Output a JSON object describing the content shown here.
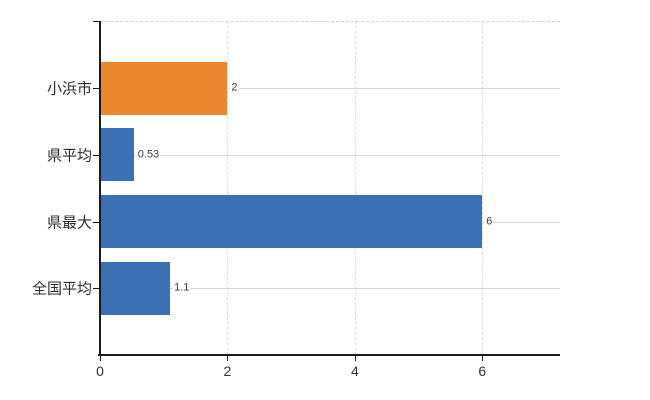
{
  "page": {
    "background_color": "#ffffff"
  },
  "chart_data": {
    "type": "bar",
    "orientation": "horizontal",
    "title": "",
    "xlabel": "",
    "ylabel": "",
    "categories": [
      "小浜市",
      "県平均",
      "県最大",
      "全国平均"
    ],
    "values": [
      2,
      0.53,
      6,
      1.1
    ],
    "value_labels": [
      "2",
      "0.53",
      "6",
      "1.1"
    ],
    "bar_colors": [
      "#EB872E",
      "#3C70B4",
      "#3C70B4",
      "#3C70B4"
    ],
    "x_ticks": [
      0,
      2,
      4,
      6
    ],
    "x_tick_labels": [
      "0",
      "2",
      "4",
      "6"
    ],
    "xlim": [
      0,
      7.22
    ],
    "grid": true,
    "legend_position": "none",
    "colors": {
      "orange_bar": "#EB872E",
      "blue_bar": "#3C70B4",
      "axis": "#1a1a1a",
      "horizontal_gridline": "#d6dbd2",
      "vertical_gridline": "#dcdcdc",
      "top_border": "#d2d2d2",
      "label_text": "#3c3c3c"
    }
  }
}
